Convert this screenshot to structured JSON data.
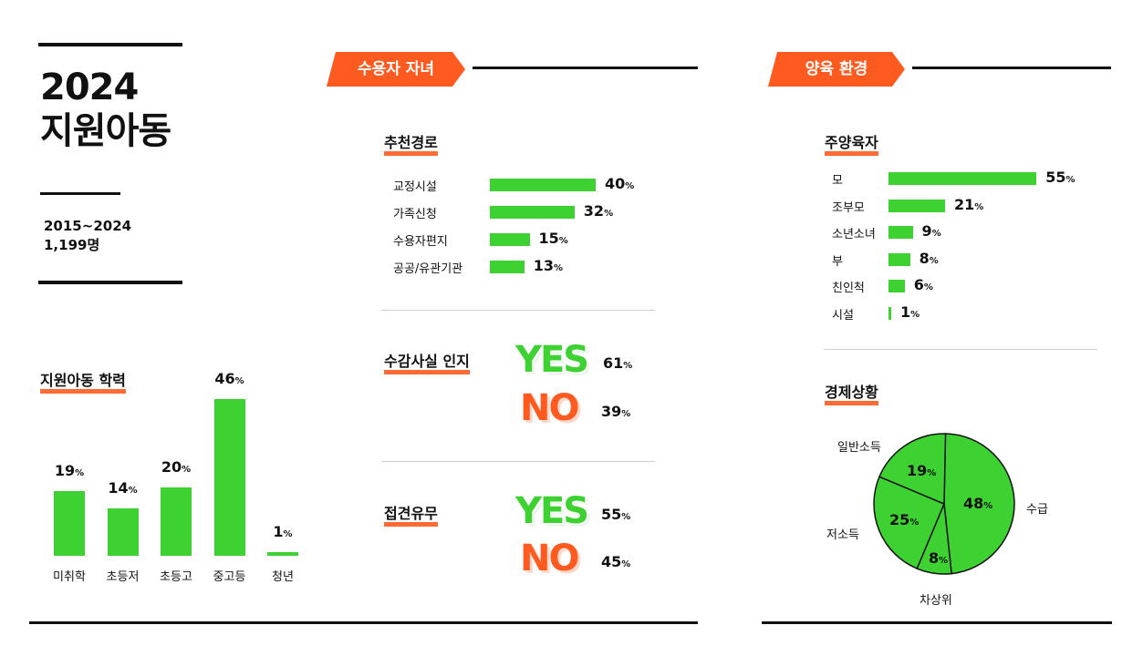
{
  "header": {
    "title_line1": "2024",
    "title_line2": "지원아동",
    "period": "2015~2024",
    "count": "1,199명"
  },
  "colors": {
    "accent": "#ff5a1f",
    "bar": "#3dd132",
    "ink": "#111111"
  },
  "percent_sign": "%",
  "sections": {
    "education_title": "지원아동 학력",
    "children_banner": "수용자 자녀",
    "environment_banner": "양육 환경",
    "referral_title": "추천경로",
    "awareness_title": "수감사실 인지",
    "visit_title": "접견유무",
    "caregiver_title": "주양육자",
    "economy_title": "경제상황"
  },
  "yes_label": "YES",
  "no_label": "NO",
  "chart_data": [
    {
      "id": "education",
      "type": "bar",
      "title": "지원아동 학력",
      "categories": [
        "미취학",
        "초등저",
        "초등고",
        "중고등",
        "청년"
      ],
      "values": [
        19,
        14,
        20,
        46,
        1
      ],
      "unit": "%"
    },
    {
      "id": "referral",
      "type": "bar",
      "orientation": "horizontal",
      "title": "추천경로",
      "categories": [
        "교정시설",
        "가족신청",
        "수용자편지",
        "공공/유관기관"
      ],
      "values": [
        40,
        32,
        15,
        13
      ],
      "unit": "%"
    },
    {
      "id": "awareness",
      "type": "table",
      "title": "수감사실 인지",
      "categories": [
        "YES",
        "NO"
      ],
      "values": [
        61,
        39
      ],
      "unit": "%"
    },
    {
      "id": "visit",
      "type": "table",
      "title": "접견유무",
      "categories": [
        "YES",
        "NO"
      ],
      "values": [
        55,
        45
      ],
      "unit": "%"
    },
    {
      "id": "caregiver",
      "type": "bar",
      "orientation": "horizontal",
      "title": "주양육자",
      "categories": [
        "모",
        "조부모",
        "소년소녀",
        "부",
        "친인척",
        "시설"
      ],
      "values": [
        55,
        21,
        9,
        8,
        6,
        1
      ],
      "unit": "%"
    },
    {
      "id": "economy",
      "type": "pie",
      "title": "경제상황",
      "categories": [
        "수급",
        "차상위",
        "저소득",
        "일반소득"
      ],
      "values": [
        48,
        8,
        25,
        19
      ],
      "unit": "%"
    }
  ]
}
